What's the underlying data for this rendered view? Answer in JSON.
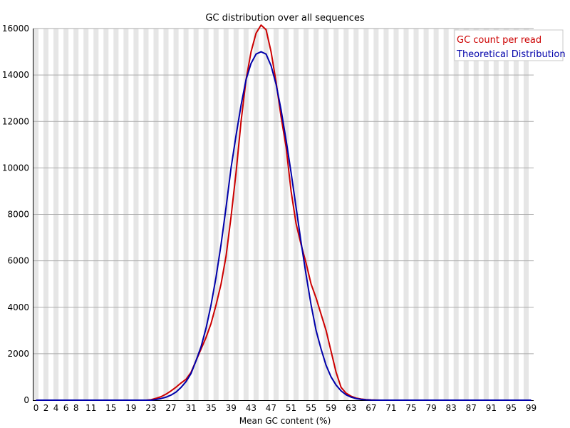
{
  "chart_data": {
    "type": "line",
    "title": "GC distribution over all sequences",
    "xlabel": "Mean GC content (%)",
    "ylabel": "",
    "xlim": [
      0,
      100
    ],
    "ylim": [
      0,
      16000
    ],
    "grid": true,
    "legend_position": "top-right",
    "x_ticks": [
      "0",
      "2",
      "4",
      "6",
      "8",
      "11",
      "15",
      "19",
      "23",
      "27",
      "31",
      "35",
      "39",
      "43",
      "47",
      "51",
      "55",
      "59",
      "63",
      "67",
      "71",
      "75",
      "79",
      "83",
      "87",
      "91",
      "95",
      "99"
    ],
    "y_ticks": [
      "0",
      "2000",
      "4000",
      "6000",
      "8000",
      "10000",
      "12000",
      "14000",
      "16000"
    ],
    "colors": {
      "series_1": "#cc0000",
      "series_2": "#0000aa",
      "stripe": "#e6e6e6",
      "grid": "#aaaaaa"
    },
    "x": [
      0,
      1,
      2,
      3,
      4,
      5,
      6,
      7,
      8,
      9,
      10,
      11,
      12,
      13,
      14,
      15,
      16,
      17,
      18,
      19,
      20,
      21,
      22,
      23,
      24,
      25,
      26,
      27,
      28,
      29,
      30,
      31,
      32,
      33,
      34,
      35,
      36,
      37,
      38,
      39,
      40,
      41,
      42,
      43,
      44,
      45,
      46,
      47,
      48,
      49,
      50,
      51,
      52,
      53,
      54,
      55,
      56,
      57,
      58,
      59,
      60,
      61,
      62,
      63,
      64,
      65,
      66,
      67,
      68,
      69,
      70,
      71,
      72,
      73,
      74,
      75,
      76,
      77,
      78,
      79,
      80,
      81,
      82,
      83,
      84,
      85,
      86,
      87,
      88,
      89,
      90,
      91,
      92,
      93,
      94,
      95,
      96,
      97,
      98,
      99,
      100
    ],
    "series": [
      {
        "name": "GC count per read",
        "values": [
          0,
          0,
          0,
          0,
          0,
          0,
          0,
          0,
          0,
          0,
          0,
          0,
          0,
          0,
          0,
          0,
          0,
          0,
          0,
          0,
          0,
          0,
          0,
          20,
          80,
          150,
          260,
          400,
          560,
          740,
          900,
          1200,
          1700,
          2200,
          2700,
          3300,
          4100,
          5000,
          6200,
          7900,
          9800,
          12000,
          13800,
          15000,
          15800,
          16150,
          15950,
          15000,
          13700,
          12200,
          10900,
          9000,
          7600,
          6700,
          5900,
          5000,
          4400,
          3700,
          3000,
          2100,
          1200,
          550,
          300,
          170,
          90,
          50,
          25,
          10,
          5,
          0,
          0,
          0,
          0,
          0,
          0,
          0,
          0,
          0,
          0,
          0,
          0,
          0,
          0,
          0,
          0,
          0,
          0,
          0,
          0,
          0,
          0,
          0,
          0,
          0,
          0,
          0,
          0,
          0,
          0,
          0,
          0
        ]
      },
      {
        "name": "Theoretical Distribution",
        "values": [
          0,
          0,
          0,
          0,
          0,
          0,
          0,
          0,
          0,
          0,
          0,
          0,
          0,
          0,
          0,
          0,
          0,
          0,
          0,
          0,
          0,
          0,
          0,
          0,
          30,
          70,
          130,
          220,
          350,
          550,
          800,
          1150,
          1700,
          2300,
          3100,
          4100,
          5300,
          6700,
          8300,
          10000,
          11400,
          12700,
          13800,
          14500,
          14900,
          15000,
          14900,
          14400,
          13600,
          12500,
          11200,
          9800,
          8300,
          6800,
          5400,
          4100,
          3000,
          2200,
          1500,
          1000,
          650,
          400,
          230,
          130,
          70,
          35,
          15,
          5,
          0,
          0,
          0,
          0,
          0,
          0,
          0,
          0,
          0,
          0,
          0,
          0,
          0,
          0,
          0,
          0,
          0,
          0,
          0,
          0,
          0,
          0,
          0,
          0,
          0,
          0,
          0,
          0,
          0,
          0,
          0,
          0,
          0
        ]
      }
    ]
  }
}
